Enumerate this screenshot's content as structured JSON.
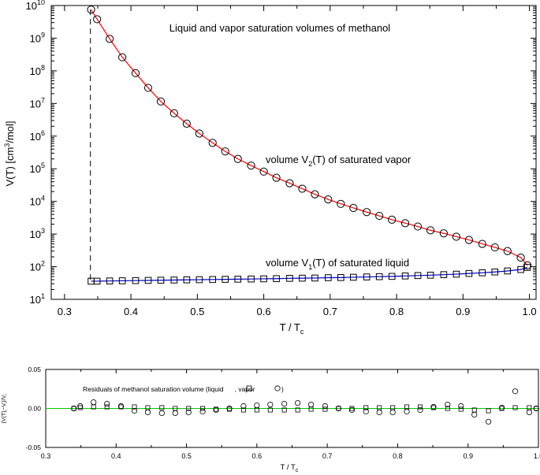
{
  "chart_data": [
    {
      "type": "scatter",
      "title": "Liquid and vapor saturation volumes of methanol",
      "xlabel": "T / T",
      "xlabel_sub": "c",
      "ylabel": "V(T) [cm",
      "ylabel_sup": "3",
      "ylabel_tail": "/mol]",
      "y_scale": "log",
      "xlim": [
        0.28,
        1.01
      ],
      "ylim": [
        10,
        10000000000
      ],
      "x_ticks": [
        0.3,
        0.4,
        0.5,
        0.6,
        0.7,
        0.8,
        0.9,
        1.0
      ],
      "x_tick_labels": [
        "0.3",
        "0.4",
        "0.5",
        "0.6",
        "0.7",
        "0.8",
        "0.9",
        "1.0"
      ],
      "y_ticks": [
        {
          "base": "10",
          "exp": "1",
          "value": 10
        },
        {
          "base": "10",
          "exp": "2",
          "value": 100
        },
        {
          "base": "10",
          "exp": "3",
          "value": 1000
        },
        {
          "base": "10",
          "exp": "4",
          "value": 10000
        },
        {
          "base": "10",
          "exp": "5",
          "value": 100000
        },
        {
          "base": "10",
          "exp": "6",
          "value": 1000000
        },
        {
          "base": "10",
          "exp": "7",
          "value": 10000000
        },
        {
          "base": "10",
          "exp": "8",
          "value": 100000000
        },
        {
          "base": "10",
          "exp": "9",
          "value": 1000000000
        },
        {
          "base": "10",
          "exp": "10",
          "value": 10000000000
        }
      ],
      "triple_point_line_x": 0.339,
      "annotations": {
        "vapor_pre": "volume V",
        "vapor_sub": "2",
        "vapor_post": "(T) of saturated vapor",
        "liquid_pre": "volume V",
        "liquid_sub": "1",
        "liquid_post": "(T) of saturated liquid"
      },
      "colors": {
        "vapor_line": "#ff0000",
        "liquid_line": "#0000cc",
        "markers": "#000000",
        "triple_line": "#000000"
      },
      "series": [
        {
          "marker": "circle",
          "x": [
            0.34,
            0.349,
            0.368,
            0.387,
            0.407,
            0.426,
            0.445,
            0.465,
            0.484,
            0.503,
            0.523,
            0.542,
            0.561,
            0.581,
            0.6,
            0.619,
            0.639,
            0.658,
            0.677,
            0.697,
            0.716,
            0.735,
            0.755,
            0.774,
            0.793,
            0.813,
            0.832,
            0.851,
            0.871,
            0.89,
            0.909,
            0.929,
            0.948,
            0.967,
            0.987,
            0.997
          ],
          "y": [
            7500000000,
            3800000000,
            950000000,
            260000000,
            85000000,
            30000000,
            11500000,
            5000000,
            2400000,
            1200000,
            620000,
            340000,
            200000,
            125000,
            82000,
            53000,
            36000,
            24500,
            16500,
            11500,
            8400,
            6300,
            4700,
            3600,
            2750,
            2150,
            1700,
            1300,
            1050,
            830,
            660,
            500,
            390,
            300,
            190,
            110
          ]
        },
        {
          "marker": "square",
          "x": [
            0.34,
            0.349,
            0.368,
            0.387,
            0.407,
            0.426,
            0.445,
            0.465,
            0.484,
            0.503,
            0.523,
            0.542,
            0.561,
            0.581,
            0.6,
            0.619,
            0.639,
            0.658,
            0.677,
            0.697,
            0.716,
            0.735,
            0.755,
            0.774,
            0.793,
            0.813,
            0.832,
            0.851,
            0.871,
            0.89,
            0.909,
            0.929,
            0.948,
            0.967,
            0.987,
            0.997
          ],
          "y": [
            36,
            36,
            36.5,
            37,
            37.5,
            38,
            38.5,
            39,
            39.5,
            40,
            40.5,
            41,
            41.5,
            42,
            42.5,
            43,
            44,
            44.5,
            45,
            46,
            46.5,
            47.5,
            48.5,
            49.5,
            50.5,
            52,
            53.5,
            55,
            57,
            59,
            62,
            65,
            69,
            74,
            82,
            95
          ]
        }
      ]
    },
    {
      "type": "scatter",
      "title": "",
      "annotation_pre": "Residuals of methanol saturation volume (liquid",
      "annotation_mid": ",  vapor",
      "xlabel": "T / T",
      "xlabel_sub": "c",
      "ylabel": "(V(T)",
      "ylabel_sub_a": "i",
      "ylabel_mid": "−V",
      "ylabel_sub_b": "i",
      "ylabel_mid2": ")/V",
      "ylabel_sub_c": "i",
      "xlim": [
        0.3,
        1.0
      ],
      "ylim": [
        -0.05,
        0.05
      ],
      "x_ticks": [
        0.3,
        0.4,
        0.5,
        0.6,
        0.7,
        0.8,
        0.9,
        1.0
      ],
      "x_tick_labels": [
        "0.3",
        "0.4",
        "0.5",
        "0.6",
        "0.7",
        "0.8",
        "0.9",
        "1.0"
      ],
      "y_ticks": [
        0.05,
        0.0,
        -0.05
      ],
      "y_tick_labels": [
        "0.05",
        "0.00",
        "-0.05"
      ],
      "zero_line_color": "#00cc00",
      "series": [
        {
          "marker": "circle",
          "x": [
            0.34,
            0.349,
            0.368,
            0.387,
            0.407,
            0.426,
            0.445,
            0.465,
            0.484,
            0.503,
            0.523,
            0.542,
            0.561,
            0.581,
            0.6,
            0.619,
            0.639,
            0.658,
            0.677,
            0.697,
            0.716,
            0.735,
            0.755,
            0.774,
            0.793,
            0.813,
            0.832,
            0.851,
            0.871,
            0.89,
            0.909,
            0.929,
            0.948,
            0.967,
            0.987,
            0.997
          ],
          "y": [
            0.0,
            0.003,
            0.008,
            0.006,
            0.003,
            -0.003,
            -0.005,
            -0.006,
            -0.006,
            -0.005,
            -0.004,
            -0.002,
            0.0,
            0.003,
            0.004,
            0.005,
            0.006,
            0.007,
            0.005,
            0.003,
            0.0,
            -0.002,
            -0.004,
            -0.005,
            -0.005,
            -0.004,
            -0.002,
            0.002,
            0.005,
            0.003,
            -0.008,
            -0.017,
            0.001,
            0.022,
            -0.005,
            0.0
          ]
        },
        {
          "marker": "square",
          "x": [
            0.34,
            0.349,
            0.368,
            0.387,
            0.407,
            0.426,
            0.445,
            0.465,
            0.484,
            0.503,
            0.523,
            0.542,
            0.561,
            0.581,
            0.6,
            0.619,
            0.639,
            0.658,
            0.677,
            0.697,
            0.716,
            0.735,
            0.755,
            0.774,
            0.793,
            0.813,
            0.832,
            0.851,
            0.871,
            0.89,
            0.909,
            0.929,
            0.948,
            0.967,
            0.987,
            0.997
          ],
          "y": [
            0.0,
            0.001,
            0.002,
            0.002,
            0.002,
            0.002,
            0.001,
            0.001,
            0.0,
            0.0,
            0.0,
            -0.001,
            -0.001,
            -0.002,
            -0.002,
            -0.002,
            -0.002,
            -0.002,
            -0.001,
            -0.001,
            0.0,
            0.0,
            0.001,
            0.001,
            0.001,
            0.002,
            0.002,
            0.001,
            0.0,
            -0.001,
            -0.002,
            -0.003,
            0.0,
            0.001,
            0.001,
            0.0
          ]
        }
      ]
    }
  ]
}
